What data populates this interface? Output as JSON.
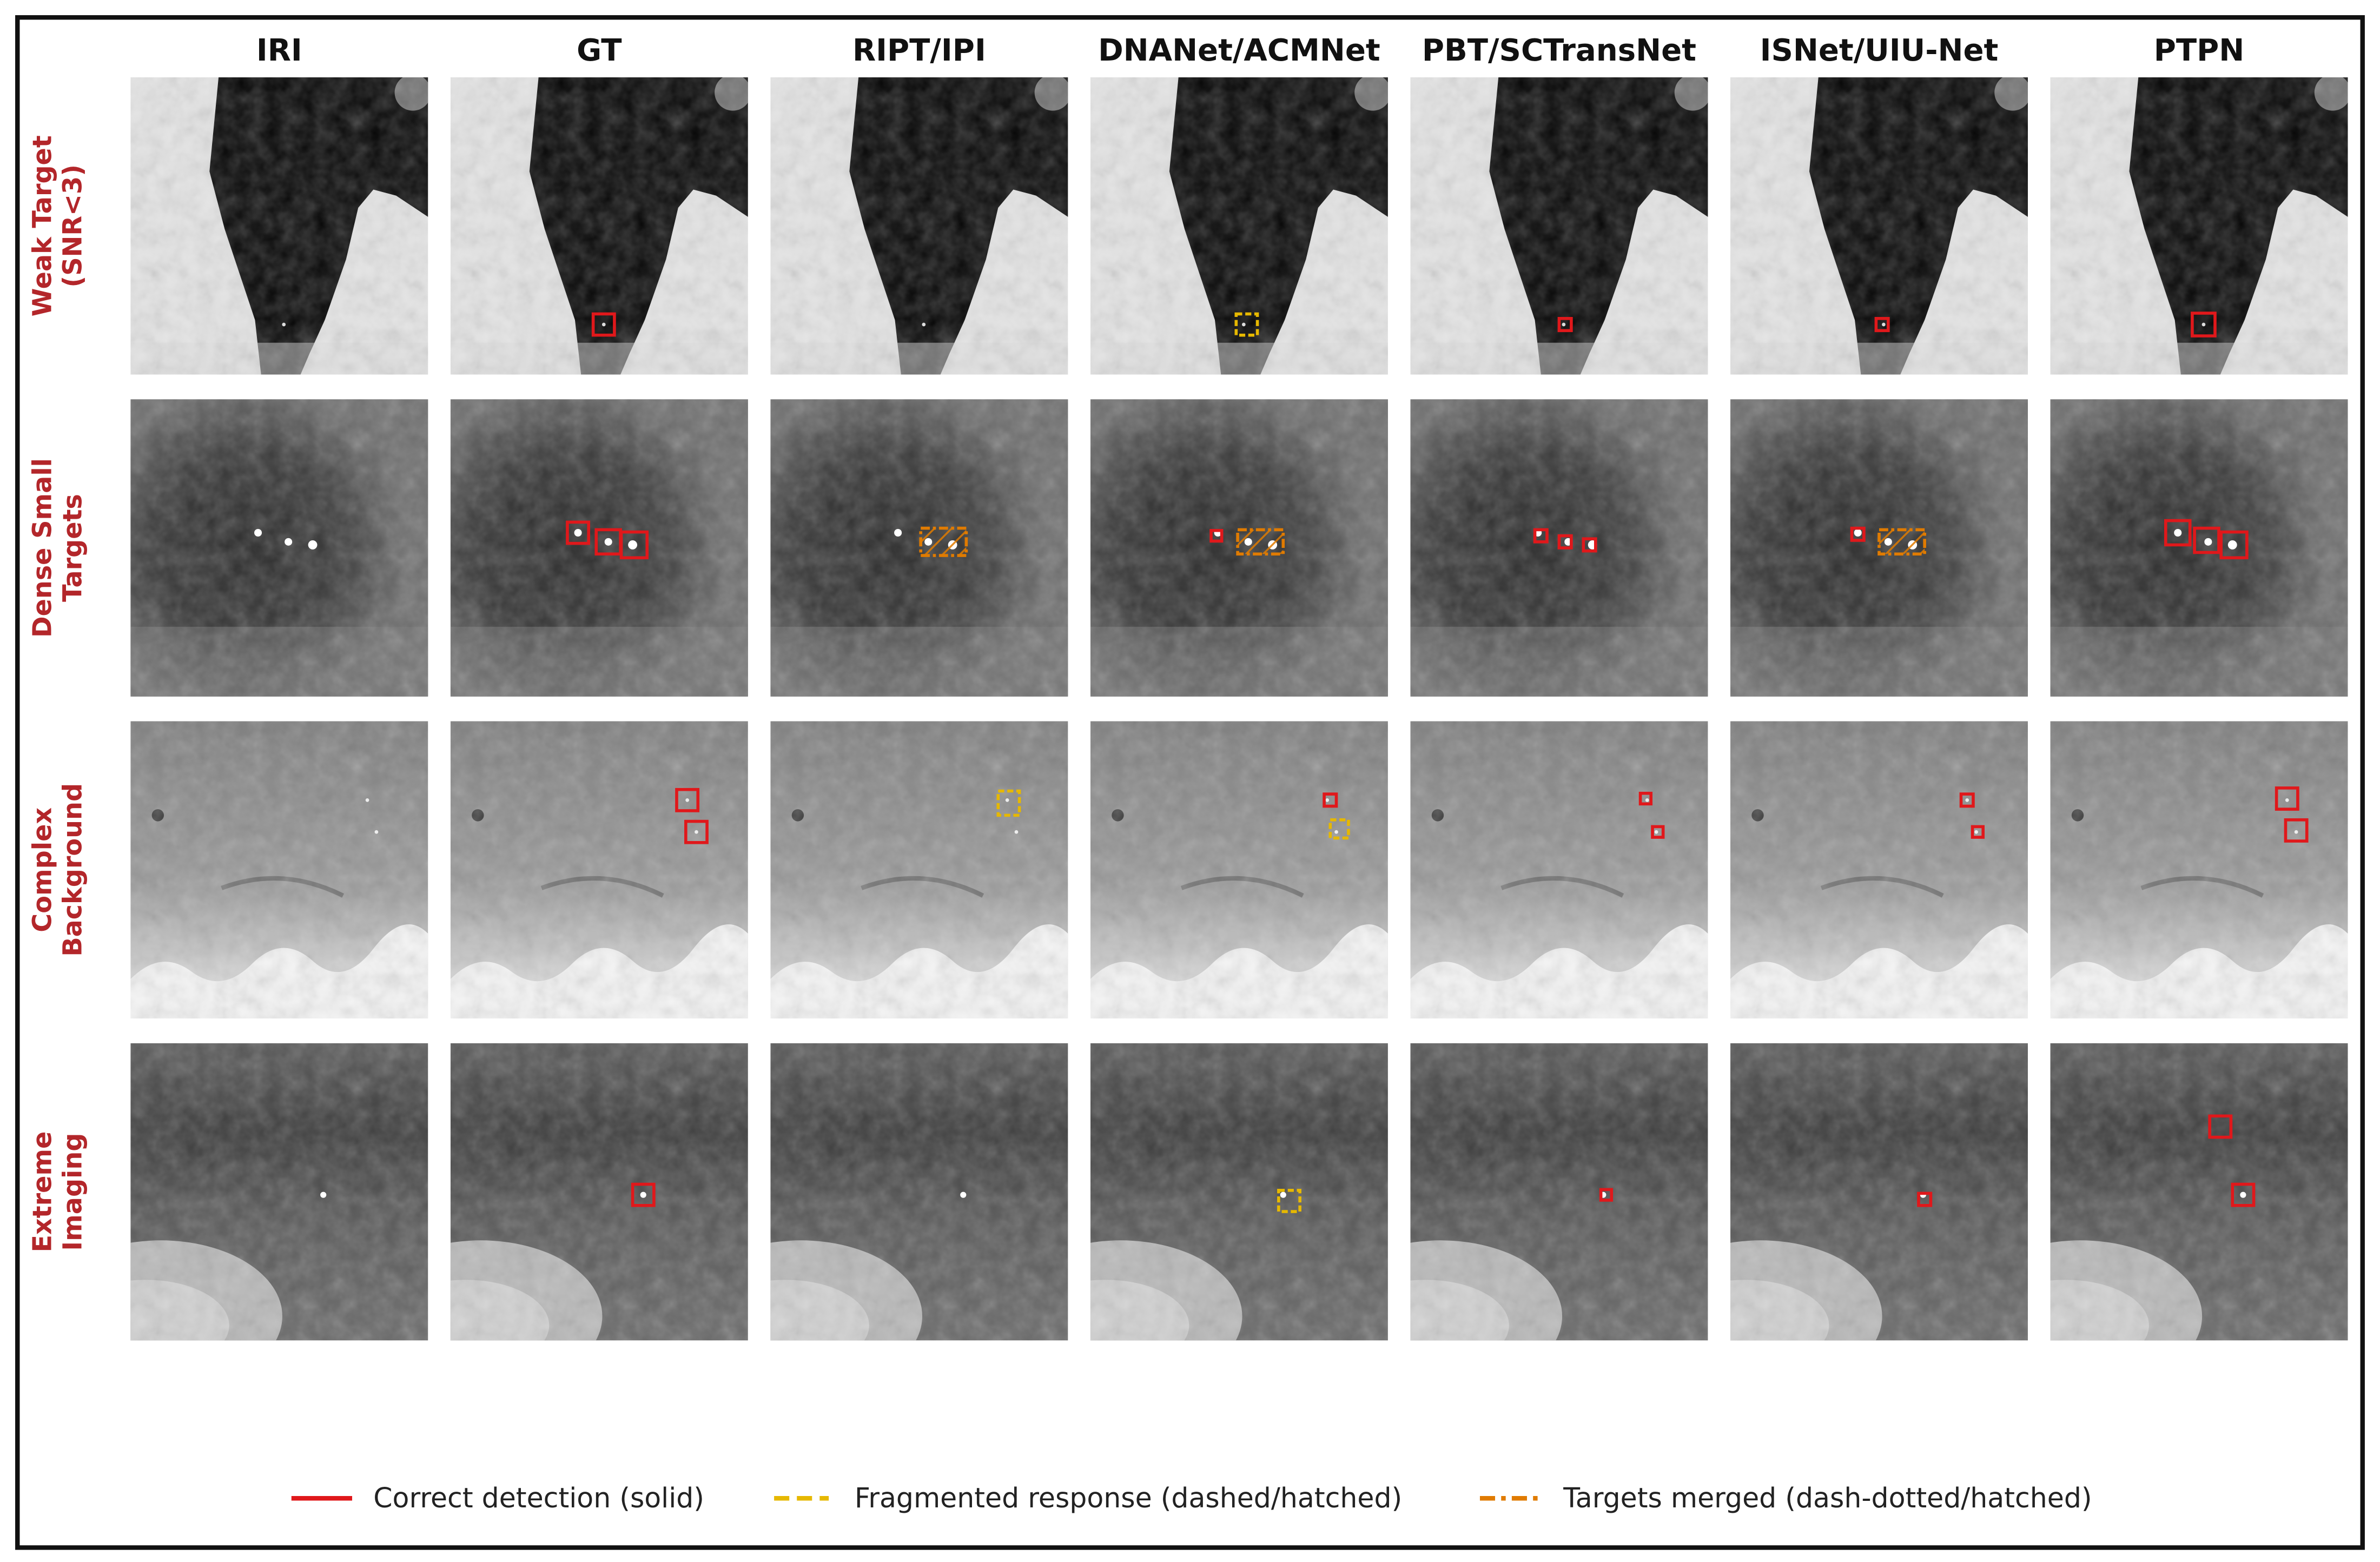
{
  "columns": [
    "IRI",
    "GT",
    "RIPT/IPI",
    "DNANet/ACMNet",
    "PBT/SCTransNet",
    "ISNet/UIU-Net",
    "PTPN"
  ],
  "rows": [
    {
      "lines": [
        "Weak Target",
        "(SNR<3)"
      ]
    },
    {
      "lines": [
        "Dense Small",
        "Targets"
      ]
    },
    {
      "lines": [
        "Complex",
        "Background"
      ]
    },
    {
      "lines": [
        "Extreme",
        "Imaging"
      ]
    }
  ],
  "legend": [
    "Correct detection (solid)",
    "Fragmented response (dashed/hatched)",
    "Targets merged (dash-dotted/hatched)"
  ]
}
